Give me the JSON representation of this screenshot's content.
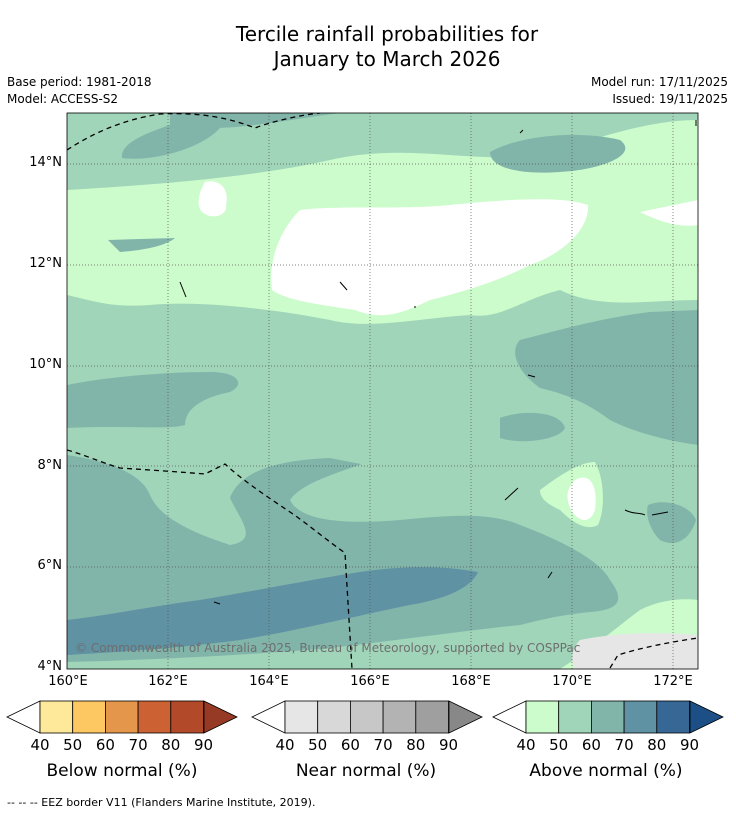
{
  "title_line1": "Tercile rainfall probabilities for",
  "title_line2": "January to March 2026",
  "base_period": "Base period: 1981-2018",
  "model": "Model: ACCESS-S2",
  "model_run": "Model run: 17/11/2025",
  "issued": "Issued: 19/11/2025",
  "copyright": "© Commonwealth of Australia 2025, Bureau of Meteorology, supported by COSPPac",
  "map": {
    "lat_labels": [
      "14°N",
      "12°N",
      "10°N",
      "8°N",
      "6°N",
      "4°N"
    ],
    "lon_labels": [
      "160°E",
      "162°E",
      "164°E",
      "166°E",
      "168°E",
      "170°E",
      "172°E"
    ],
    "lat_range": [
      4,
      15
    ],
    "lon_range": [
      160,
      172.5
    ]
  },
  "legends": [
    {
      "title": "Below normal (%)",
      "ticks": [
        "40",
        "50",
        "60",
        "70",
        "80",
        "90"
      ],
      "colors": [
        "#fee99a",
        "#fdc762",
        "#e4964a",
        "#cc6134",
        "#b24a2a",
        "#963a25"
      ]
    },
    {
      "title": "Near normal (%)",
      "ticks": [
        "40",
        "50",
        "60",
        "70",
        "80",
        "90"
      ],
      "colors": [
        "#e6e6e6",
        "#d8d8d8",
        "#c7c7c7",
        "#b3b3b3",
        "#9f9f9f",
        "#888888"
      ]
    },
    {
      "title": "Above normal (%)",
      "ticks": [
        "40",
        "50",
        "60",
        "70",
        "80",
        "90"
      ],
      "colors": [
        "#ccfccb",
        "#a0d5b9",
        "#81b5aa",
        "#5f92a3",
        "#376795",
        "#1c4f85"
      ]
    }
  ],
  "footnote": "--  --  -- EEZ border V11 (Flanders Marine Institute, 2019)."
}
